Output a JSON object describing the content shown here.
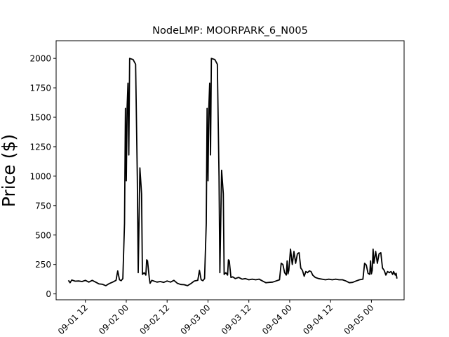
{
  "chart_data": {
    "type": "line",
    "title": "NodeLMP: MOORPARK_6_N005",
    "xlabel": "",
    "ylabel": "Price ($)",
    "ylim": [
      -50,
      2150
    ],
    "yticks": [
      0,
      250,
      500,
      750,
      1000,
      1250,
      1500,
      1750,
      2000
    ],
    "xlim": [
      "2023-09-01 03:24",
      "2023-09-05 09:36"
    ],
    "xticks": [
      {
        "t": "2023-09-01 12:00",
        "label": "09-01 12"
      },
      {
        "t": "2023-09-02 00:00",
        "label": "09-02 00"
      },
      {
        "t": "2023-09-02 12:00",
        "label": "09-02 12"
      },
      {
        "t": "2023-09-03 00:00",
        "label": "09-03 00"
      },
      {
        "t": "2023-09-03 12:00",
        "label": "09-03 12"
      },
      {
        "t": "2023-09-04 00:00",
        "label": "09-04 00"
      },
      {
        "t": "2023-09-04 12:00",
        "label": "09-04 12"
      },
      {
        "t": "2023-09-05 00:00",
        "label": "09-05 00"
      }
    ],
    "grid": false,
    "series": [
      {
        "color": "#000000",
        "points": [
          [
            "2023-09-01 07:00",
            115
          ],
          [
            "2023-09-01 07:30",
            95
          ],
          [
            "2023-09-01 08:00",
            118
          ],
          [
            "2023-09-01 09:00",
            108
          ],
          [
            "2023-09-01 10:00",
            110
          ],
          [
            "2023-09-01 11:00",
            105
          ],
          [
            "2023-09-01 12:00",
            115
          ],
          [
            "2023-09-01 13:00",
            100
          ],
          [
            "2023-09-01 14:00",
            115
          ],
          [
            "2023-09-01 15:00",
            100
          ],
          [
            "2023-09-01 16:00",
            85
          ],
          [
            "2023-09-01 17:00",
            82
          ],
          [
            "2023-09-01 18:00",
            70
          ],
          [
            "2023-09-01 19:00",
            88
          ],
          [
            "2023-09-01 20:00",
            100
          ],
          [
            "2023-09-01 21:00",
            115
          ],
          [
            "2023-09-01 21:30",
            195
          ],
          [
            "2023-09-01 22:00",
            120
          ],
          [
            "2023-09-01 22:30",
            112
          ],
          [
            "2023-09-01 23:00",
            130
          ],
          [
            "2023-09-01 23:30",
            600
          ],
          [
            "2023-09-01 23:45",
            1575
          ],
          [
            "2023-09-02 00:00",
            960
          ],
          [
            "2023-09-02 00:15",
            1590
          ],
          [
            "2023-09-02 00:30",
            1790
          ],
          [
            "2023-09-02 00:45",
            1180
          ],
          [
            "2023-09-02 01:00",
            2000
          ],
          [
            "2023-09-02 02:00",
            1990
          ],
          [
            "2023-09-02 02:45",
            1950
          ],
          [
            "2023-09-02 03:15",
            1000
          ],
          [
            "2023-09-02 03:30",
            180
          ],
          [
            "2023-09-02 04:00",
            1070
          ],
          [
            "2023-09-02 04:30",
            850
          ],
          [
            "2023-09-02 04:45",
            165
          ],
          [
            "2023-09-02 05:15",
            180
          ],
          [
            "2023-09-02 05:45",
            160
          ],
          [
            "2023-09-02 06:00",
            290
          ],
          [
            "2023-09-02 06:15",
            280
          ],
          [
            "2023-09-02 06:45",
            140
          ],
          [
            "2023-09-02 07:00",
            90
          ],
          [
            "2023-09-02 07:30",
            115
          ],
          [
            "2023-09-02 09:00",
            100
          ],
          [
            "2023-09-02 10:00",
            105
          ],
          [
            "2023-09-02 11:00",
            98
          ],
          [
            "2023-09-02 12:00",
            110
          ],
          [
            "2023-09-02 13:00",
            100
          ],
          [
            "2023-09-02 14:00",
            115
          ],
          [
            "2023-09-02 15:00",
            90
          ],
          [
            "2023-09-02 16:00",
            80
          ],
          [
            "2023-09-02 17:00",
            78
          ],
          [
            "2023-09-02 18:00",
            70
          ],
          [
            "2023-09-02 19:00",
            88
          ],
          [
            "2023-09-02 20:00",
            110
          ],
          [
            "2023-09-02 21:00",
            115
          ],
          [
            "2023-09-02 21:30",
            200
          ],
          [
            "2023-09-02 22:00",
            120
          ],
          [
            "2023-09-02 22:30",
            112
          ],
          [
            "2023-09-02 23:00",
            130
          ],
          [
            "2023-09-02 23:30",
            600
          ],
          [
            "2023-09-02 23:45",
            1575
          ],
          [
            "2023-09-03 00:00",
            960
          ],
          [
            "2023-09-03 00:15",
            1590
          ],
          [
            "2023-09-03 00:30",
            1790
          ],
          [
            "2023-09-03 00:45",
            1180
          ],
          [
            "2023-09-03 01:00",
            2000
          ],
          [
            "2023-09-03 02:00",
            1990
          ],
          [
            "2023-09-03 02:45",
            1950
          ],
          [
            "2023-09-03 03:15",
            1000
          ],
          [
            "2023-09-03 03:30",
            180
          ],
          [
            "2023-09-03 04:00",
            1050
          ],
          [
            "2023-09-03 04:30",
            850
          ],
          [
            "2023-09-03 04:45",
            165
          ],
          [
            "2023-09-03 05:15",
            180
          ],
          [
            "2023-09-03 05:45",
            160
          ],
          [
            "2023-09-03 06:00",
            290
          ],
          [
            "2023-09-03 06:15",
            280
          ],
          [
            "2023-09-03 06:45",
            140
          ],
          [
            "2023-09-03 07:15",
            145
          ],
          [
            "2023-09-03 08:00",
            130
          ],
          [
            "2023-09-03 09:00",
            140
          ],
          [
            "2023-09-03 10:00",
            125
          ],
          [
            "2023-09-03 11:00",
            130
          ],
          [
            "2023-09-03 12:00",
            120
          ],
          [
            "2023-09-03 13:00",
            125
          ],
          [
            "2023-09-03 14:00",
            120
          ],
          [
            "2023-09-03 15:00",
            125
          ],
          [
            "2023-09-03 16:00",
            110
          ],
          [
            "2023-09-03 17:00",
            95
          ],
          [
            "2023-09-03 18:00",
            98
          ],
          [
            "2023-09-03 19:00",
            100
          ],
          [
            "2023-09-03 20:00",
            110
          ],
          [
            "2023-09-03 21:00",
            120
          ],
          [
            "2023-09-03 21:30",
            260
          ],
          [
            "2023-09-03 22:00",
            250
          ],
          [
            "2023-09-03 22:30",
            180
          ],
          [
            "2023-09-03 23:00",
            160
          ],
          [
            "2023-09-03 23:15",
            280
          ],
          [
            "2023-09-03 23:30",
            170
          ],
          [
            "2023-09-03 23:45",
            200
          ],
          [
            "2023-09-04 00:15",
            380
          ],
          [
            "2023-09-04 00:45",
            250
          ],
          [
            "2023-09-04 01:15",
            360
          ],
          [
            "2023-09-04 01:45",
            260
          ],
          [
            "2023-09-04 02:15",
            340
          ],
          [
            "2023-09-04 02:45",
            350
          ],
          [
            "2023-09-04 03:15",
            220
          ],
          [
            "2023-09-04 03:45",
            200
          ],
          [
            "2023-09-04 04:15",
            150
          ],
          [
            "2023-09-04 04:45",
            190
          ],
          [
            "2023-09-04 05:15",
            180
          ],
          [
            "2023-09-04 05:45",
            195
          ],
          [
            "2023-09-04 06:15",
            190
          ],
          [
            "2023-09-04 06:45",
            160
          ],
          [
            "2023-09-04 07:30",
            140
          ],
          [
            "2023-09-04 08:30",
            130
          ],
          [
            "2023-09-04 09:30",
            125
          ],
          [
            "2023-09-04 10:30",
            120
          ],
          [
            "2023-09-04 11:30",
            125
          ],
          [
            "2023-09-04 12:30",
            120
          ],
          [
            "2023-09-04 13:30",
            125
          ],
          [
            "2023-09-04 14:30",
            120
          ],
          [
            "2023-09-04 15:30",
            120
          ],
          [
            "2023-09-04 16:30",
            110
          ],
          [
            "2023-09-04 17:30",
            95
          ],
          [
            "2023-09-04 18:30",
            98
          ],
          [
            "2023-09-04 19:30",
            110
          ],
          [
            "2023-09-04 20:30",
            120
          ],
          [
            "2023-09-04 21:30",
            125
          ],
          [
            "2023-09-04 22:00",
            260
          ],
          [
            "2023-09-04 22:30",
            245
          ],
          [
            "2023-09-04 23:00",
            175
          ],
          [
            "2023-09-04 23:30",
            165
          ],
          [
            "2023-09-04 23:45",
            280
          ],
          [
            "2023-09-05 00:00",
            170
          ],
          [
            "2023-09-05 00:15",
            200
          ],
          [
            "2023-09-05 00:30",
            380
          ],
          [
            "2023-09-05 00:45",
            260
          ],
          [
            "2023-09-05 01:15",
            360
          ],
          [
            "2023-09-05 01:45",
            260
          ],
          [
            "2023-09-05 02:15",
            340
          ],
          [
            "2023-09-05 02:45",
            350
          ],
          [
            "2023-09-05 03:15",
            220
          ],
          [
            "2023-09-05 03:45",
            200
          ],
          [
            "2023-09-05 04:15",
            160
          ],
          [
            "2023-09-05 04:45",
            190
          ],
          [
            "2023-09-05 05:15",
            180
          ],
          [
            "2023-09-05 05:45",
            190
          ],
          [
            "2023-09-05 06:15",
            165
          ],
          [
            "2023-09-05 06:30",
            190
          ],
          [
            "2023-09-05 07:00",
            160
          ],
          [
            "2023-09-05 07:15",
            175
          ],
          [
            "2023-09-05 07:30",
            130
          ]
        ]
      }
    ]
  }
}
